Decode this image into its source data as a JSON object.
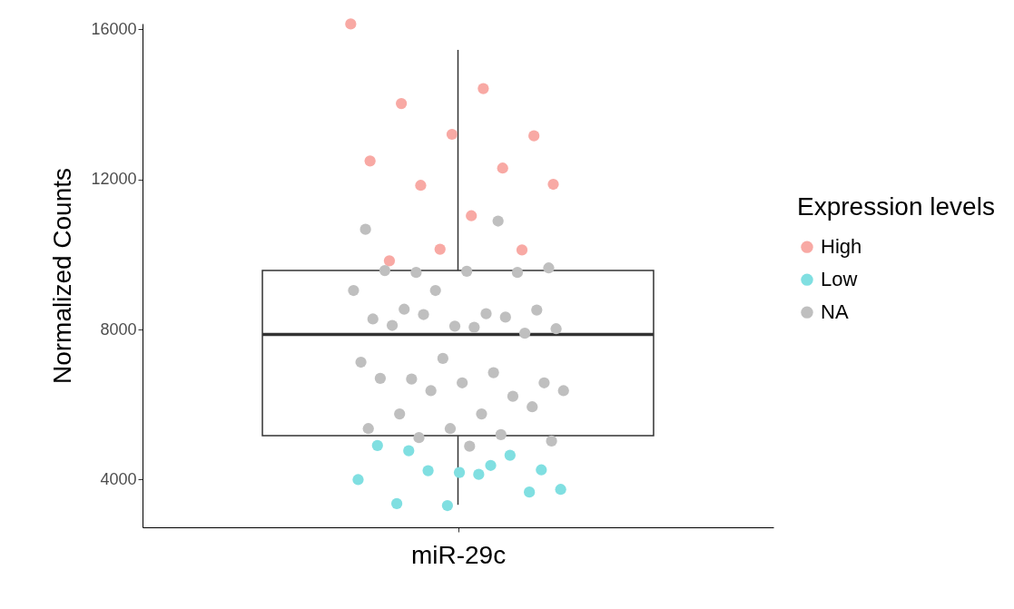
{
  "chart_data": {
    "type": "box",
    "ylabel": "Normalized Counts",
    "legend_title": "Expression levels",
    "categories": [
      "miR-29c"
    ],
    "boxes": [
      {
        "low": 3330,
        "q1": 5170,
        "median": 7870,
        "q3": 9570,
        "high": 15450
      }
    ],
    "ylim": [
      2730,
      16150
    ],
    "yticks": [
      4000,
      8000,
      12000,
      16000
    ],
    "grid": false,
    "legend": "right",
    "marker": "circle",
    "series": [
      {
        "name": "High",
        "type": "scatter",
        "color": "#f8a9a4",
        "x": [
          "miR-29c",
          "miR-29c",
          "miR-29c",
          "miR-29c",
          "miR-29c",
          "miR-29c",
          "miR-29c",
          "miR-29c",
          "miR-29c",
          "miR-29c",
          "miR-29c",
          "miR-29c",
          "miR-29c"
        ],
        "values": [
          16140,
          14420,
          14020,
          13160,
          13200,
          12490,
          12300,
          11840,
          11870,
          11030,
          9830,
          10120,
          10140
        ]
      },
      {
        "name": "Low",
        "type": "scatter",
        "color": "#80dfe1",
        "x": [
          "miR-29c",
          "miR-29c",
          "miR-29c",
          "miR-29c",
          "miR-29c",
          "miR-29c",
          "miR-29c",
          "miR-29c",
          "miR-29c",
          "miR-29c",
          "miR-29c",
          "miR-29c",
          "miR-29c"
        ],
        "values": [
          4000,
          4380,
          4770,
          4260,
          4190,
          4910,
          4650,
          4240,
          3740,
          4140,
          3360,
          3670,
          3310
        ]
      },
      {
        "name": "NA",
        "type": "scatter",
        "color": "#bfbfbf",
        "x": [
          "miR-29c",
          "miR-29c",
          "miR-29c",
          "miR-29c",
          "miR-29c",
          "miR-29c",
          "miR-29c",
          "miR-29c",
          "miR-29c",
          "miR-29c",
          "miR-29c",
          "miR-29c",
          "miR-29c",
          "miR-29c",
          "miR-29c",
          "miR-29c",
          "miR-29c",
          "miR-29c",
          "miR-29c",
          "miR-29c",
          "miR-29c",
          "miR-29c",
          "miR-29c",
          "miR-29c",
          "miR-29c",
          "miR-29c",
          "miR-29c",
          "miR-29c",
          "miR-29c",
          "miR-29c",
          "miR-29c",
          "miR-29c",
          "miR-29c",
          "miR-29c",
          "miR-29c",
          "miR-29c",
          "miR-29c",
          "miR-29c",
          "miR-29c"
        ],
        "values": [
          10670,
          10890,
          9520,
          9640,
          9550,
          9570,
          9520,
          9040,
          9040,
          8420,
          8540,
          8520,
          8090,
          8280,
          8330,
          8400,
          8020,
          8060,
          8110,
          7900,
          7230,
          7130,
          6850,
          6680,
          6580,
          6580,
          6700,
          6220,
          6370,
          6370,
          5750,
          5750,
          5940,
          5360,
          5360,
          5200,
          5120,
          5030,
          4890
        ]
      }
    ]
  }
}
